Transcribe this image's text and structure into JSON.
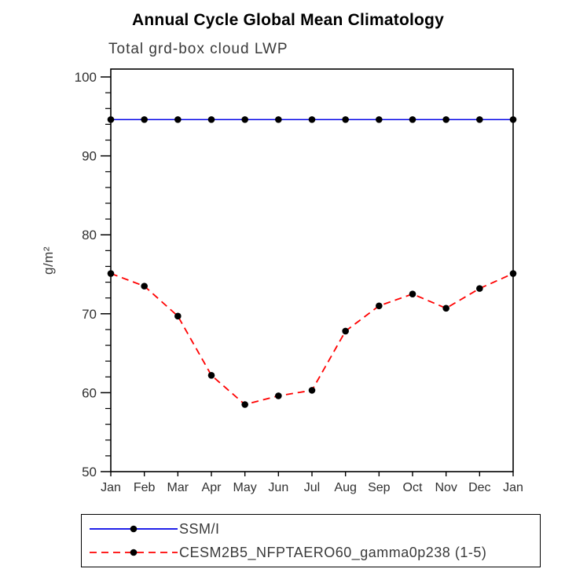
{
  "chart_data": {
    "type": "line",
    "title": "Annual Cycle Global Mean Climatology",
    "subtitle": "Total grd-box cloud LWP",
    "ylabel": "g/m²",
    "xlabel": "",
    "categories": [
      "Jan",
      "Feb",
      "Mar",
      "Apr",
      "May",
      "Jun",
      "Jul",
      "Aug",
      "Sep",
      "Oct",
      "Nov",
      "Dec",
      "Jan"
    ],
    "ylim": [
      50,
      100
    ],
    "yticks": [
      50,
      60,
      70,
      80,
      90,
      100
    ],
    "minor_tick_step": 2,
    "grid": false,
    "legend_position": "bottom",
    "marker": "filled-circle",
    "marker_color": "#000000",
    "frame_color": "#000000",
    "series": [
      {
        "name": "SSM/I",
        "color": "#0000e6",
        "line_style": "solid",
        "values": [
          94.6,
          94.6,
          94.6,
          94.6,
          94.6,
          94.6,
          94.6,
          94.6,
          94.6,
          94.6,
          94.6,
          94.6,
          94.6
        ]
      },
      {
        "name": "CESM2B5_NFPTAERO60_gamma0p238 (1-5)",
        "color": "#ff0000",
        "line_style": "dashed",
        "values": [
          75.1,
          73.5,
          69.7,
          62.2,
          58.5,
          59.6,
          60.3,
          67.8,
          71.0,
          72.5,
          70.7,
          73.2,
          75.1
        ]
      }
    ]
  }
}
